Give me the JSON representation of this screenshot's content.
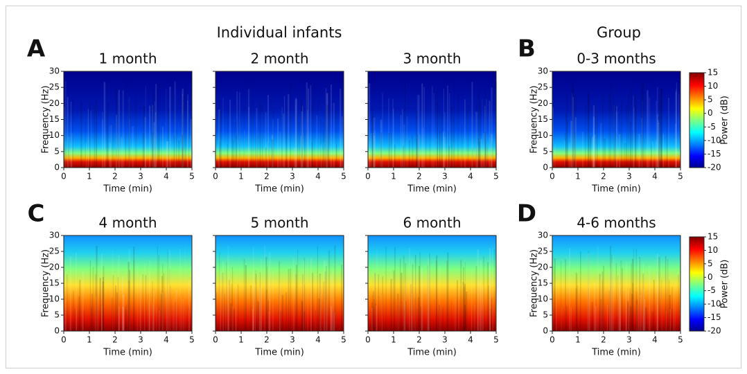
{
  "headings": {
    "individual": "Individual infants",
    "group": "Group"
  },
  "panel_labels": [
    "A",
    "B",
    "C",
    "D"
  ],
  "chart_data": [
    {
      "type": "spectrogram",
      "title": "1 month",
      "xlabel": "Time (min)",
      "ylabel": "Frequency (Hz)",
      "xlim": [
        0,
        5
      ],
      "xticks": [
        0,
        1,
        2,
        3,
        4,
        5
      ],
      "ylim": [
        0,
        30
      ],
      "yticks": [
        0,
        5,
        10,
        15,
        20,
        25,
        30
      ]
    },
    {
      "type": "spectrogram",
      "title": "2 month",
      "xlabel": "Time (min)",
      "xlim": [
        0,
        5
      ],
      "xticks": [
        0,
        1,
        2,
        3,
        4,
        5
      ],
      "ylim": [
        0,
        30
      ],
      "yticks": [
        0,
        5,
        10,
        15,
        20,
        25,
        30
      ]
    },
    {
      "type": "spectrogram",
      "title": "3 month",
      "xlabel": "Time (min)",
      "xlim": [
        0,
        5
      ],
      "xticks": [
        0,
        1,
        2,
        3,
        4,
        5
      ],
      "ylim": [
        0,
        30
      ],
      "yticks": [
        0,
        5,
        10,
        15,
        20,
        25,
        30
      ]
    },
    {
      "type": "spectrogram",
      "title": "0-3 months",
      "xlabel": "Time (min)",
      "ylabel": "Frequency (Hz)",
      "xlim": [
        0,
        5
      ],
      "xticks": [
        0,
        1,
        2,
        3,
        4,
        5
      ],
      "ylim": [
        0,
        30
      ],
      "yticks": [
        0,
        5,
        10,
        15,
        20,
        25,
        30
      ],
      "colorbar": {
        "label": "Power (dB)",
        "lim": [
          -20,
          15
        ],
        "ticks": [
          -20,
          -15,
          -10,
          -5,
          0,
          5,
          10,
          15
        ]
      }
    },
    {
      "type": "spectrogram",
      "title": "4 month",
      "xlabel": "Time (min)",
      "ylabel": "Frequency (Hz)",
      "xlim": [
        0,
        5
      ],
      "xticks": [
        0,
        1,
        2,
        3,
        4,
        5
      ],
      "ylim": [
        0,
        30
      ],
      "yticks": [
        0,
        5,
        10,
        15,
        20,
        25,
        30
      ]
    },
    {
      "type": "spectrogram",
      "title": "5 month",
      "xlabel": "Time (min)",
      "xlim": [
        0,
        5
      ],
      "xticks": [
        0,
        1,
        2,
        3,
        4,
        5
      ],
      "ylim": [
        0,
        30
      ],
      "yticks": [
        0,
        5,
        10,
        15,
        20,
        25,
        30
      ]
    },
    {
      "type": "spectrogram",
      "title": "6 month",
      "xlabel": "Time (min)",
      "xlim": [
        0,
        5
      ],
      "xticks": [
        0,
        1,
        2,
        3,
        4,
        5
      ],
      "ylim": [
        0,
        30
      ],
      "yticks": [
        0,
        5,
        10,
        15,
        20,
        25,
        30
      ]
    },
    {
      "type": "spectrogram",
      "title": "4-6 months",
      "xlabel": "Time (min)",
      "ylabel": "Frequency (Hz)",
      "xlim": [
        0,
        5
      ],
      "xticks": [
        0,
        1,
        2,
        3,
        4,
        5
      ],
      "ylim": [
        0,
        30
      ],
      "yticks": [
        0,
        5,
        10,
        15,
        20,
        25,
        30
      ],
      "colorbar": {
        "label": "Power (dB)",
        "lim": [
          -20,
          15
        ],
        "ticks": [
          -20,
          -15,
          -10,
          -5,
          0,
          5,
          10,
          15
        ]
      }
    }
  ]
}
